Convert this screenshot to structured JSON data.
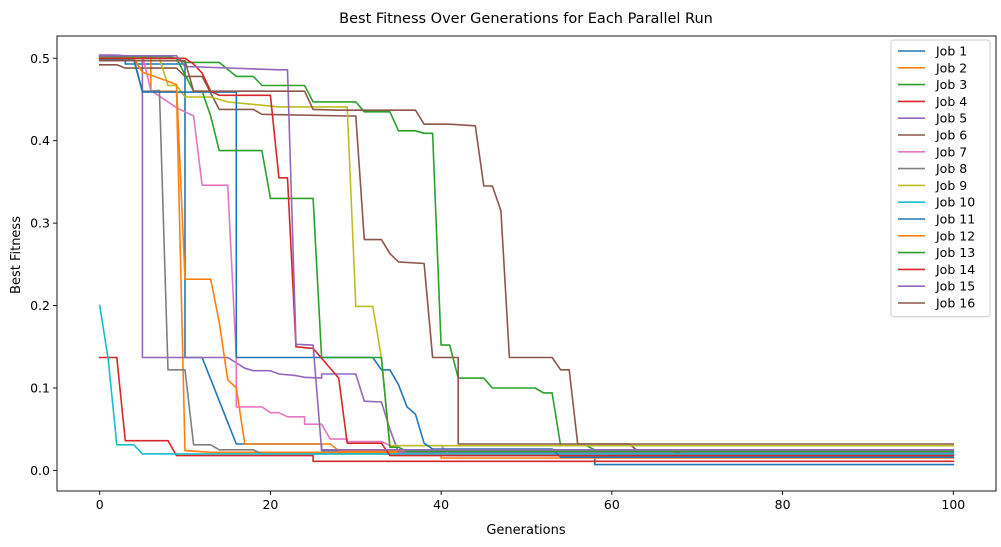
{
  "chart_data": {
    "type": "line",
    "title": "Best Fitness Over Generations for Each Parallel Run",
    "xlabel": "Generations",
    "ylabel": "Best Fitness",
    "xlim": [
      -5,
      105
    ],
    "ylim": [
      -0.025,
      0.527
    ],
    "xticks": [
      0,
      20,
      40,
      60,
      80,
      100
    ],
    "yticks": [
      0.0,
      0.1,
      0.2,
      0.3,
      0.4,
      0.5
    ],
    "xtick_labels": [
      "0",
      "20",
      "40",
      "60",
      "80",
      "100"
    ],
    "ytick_labels": [
      "0.0",
      "0.1",
      "0.2",
      "0.3",
      "0.4",
      "0.5"
    ],
    "legend_position": "top-right",
    "grid": false,
    "series": [
      {
        "name": "Job 1",
        "color": "#1f77b4",
        "points": [
          [
            0,
            0.499
          ],
          [
            3,
            0.499
          ],
          [
            3,
            0.493
          ],
          [
            10,
            0.493
          ],
          [
            10,
            0.137
          ],
          [
            12,
            0.137
          ],
          [
            16,
            0.032
          ],
          [
            26,
            0.032
          ],
          [
            26,
            0.024
          ],
          [
            58,
            0.024
          ],
          [
            58,
            0.007
          ],
          [
            100,
            0.007
          ]
        ]
      },
      {
        "name": "Job 2",
        "color": "#ff7f0e",
        "points": [
          [
            0,
            0.502
          ],
          [
            6,
            0.502
          ],
          [
            6,
            0.46
          ],
          [
            9,
            0.46
          ],
          [
            10,
            0.024
          ],
          [
            13,
            0.022
          ],
          [
            40,
            0.022
          ],
          [
            40,
            0.015
          ],
          [
            100,
            0.015
          ]
        ]
      },
      {
        "name": "Job 3",
        "color": "#2ca02c",
        "points": [
          [
            0,
            0.5
          ],
          [
            9,
            0.5
          ],
          [
            10,
            0.495
          ],
          [
            14,
            0.495
          ],
          [
            16,
            0.478
          ],
          [
            18,
            0.478
          ],
          [
            19,
            0.467
          ],
          [
            24,
            0.467
          ],
          [
            25,
            0.447
          ],
          [
            30,
            0.447
          ],
          [
            31,
            0.435
          ],
          [
            34,
            0.435
          ],
          [
            35,
            0.412
          ],
          [
            37,
            0.412
          ],
          [
            38,
            0.409
          ],
          [
            39,
            0.409
          ],
          [
            40,
            0.152
          ],
          [
            41,
            0.152
          ],
          [
            42,
            0.112
          ],
          [
            45,
            0.112
          ],
          [
            46,
            0.1
          ],
          [
            51,
            0.1
          ],
          [
            52,
            0.094
          ],
          [
            53,
            0.094
          ],
          [
            54,
            0.03
          ],
          [
            57,
            0.03
          ],
          [
            58,
            0.025
          ],
          [
            60,
            0.025
          ],
          [
            60,
            0.019
          ],
          [
            100,
            0.019
          ]
        ]
      },
      {
        "name": "Job 4",
        "color": "#d62728",
        "points": [
          [
            0,
            0.137
          ],
          [
            2,
            0.137
          ],
          [
            3,
            0.036
          ],
          [
            8,
            0.036
          ],
          [
            9,
            0.018
          ],
          [
            25,
            0.018
          ],
          [
            25,
            0.011
          ],
          [
            100,
            0.011
          ]
        ]
      },
      {
        "name": "Job 5",
        "color": "#9467bd",
        "points": [
          [
            0,
            0.504
          ],
          [
            2,
            0.504
          ],
          [
            3,
            0.503
          ],
          [
            5,
            0.503
          ],
          [
            5,
            0.137
          ],
          [
            15,
            0.137
          ],
          [
            17,
            0.124
          ],
          [
            18,
            0.121
          ],
          [
            20,
            0.121
          ],
          [
            21,
            0.117
          ],
          [
            23,
            0.115
          ],
          [
            24,
            0.113
          ],
          [
            26,
            0.112
          ],
          [
            26,
            0.117
          ],
          [
            30,
            0.117
          ],
          [
            31,
            0.084
          ],
          [
            33,
            0.083
          ],
          [
            34,
            0.05
          ],
          [
            35,
            0.022
          ],
          [
            100,
            0.022
          ]
        ]
      },
      {
        "name": "Job 6",
        "color": "#8c564b",
        "points": [
          [
            0,
            0.492
          ],
          [
            2,
            0.492
          ],
          [
            3,
            0.488
          ],
          [
            9,
            0.488
          ],
          [
            10,
            0.478
          ],
          [
            12,
            0.478
          ],
          [
            14,
            0.438
          ],
          [
            18,
            0.438
          ],
          [
            19,
            0.432
          ],
          [
            29,
            0.43
          ],
          [
            30,
            0.43
          ],
          [
            31,
            0.28
          ],
          [
            33,
            0.28
          ],
          [
            34,
            0.263
          ],
          [
            35,
            0.253
          ],
          [
            38,
            0.251
          ],
          [
            39,
            0.137
          ],
          [
            42,
            0.137
          ],
          [
            42,
            0.032
          ],
          [
            62,
            0.032
          ],
          [
            63,
            0.024
          ],
          [
            67,
            0.024
          ],
          [
            68,
            0.02
          ],
          [
            100,
            0.02
          ]
        ]
      },
      {
        "name": "Job 7",
        "color": "#e377c2",
        "points": [
          [
            0,
            0.503
          ],
          [
            5,
            0.503
          ],
          [
            6,
            0.461
          ],
          [
            9,
            0.44
          ],
          [
            11,
            0.43
          ],
          [
            12,
            0.346
          ],
          [
            15,
            0.346
          ],
          [
            16,
            0.137
          ],
          [
            16,
            0.077
          ],
          [
            19,
            0.077
          ],
          [
            20,
            0.07
          ],
          [
            21,
            0.07
          ],
          [
            22,
            0.065
          ],
          [
            24,
            0.065
          ],
          [
            24,
            0.056
          ],
          [
            26,
            0.056
          ],
          [
            27,
            0.038
          ],
          [
            29,
            0.038
          ],
          [
            29,
            0.035
          ],
          [
            33,
            0.035
          ],
          [
            34,
            0.03
          ],
          [
            40,
            0.03
          ],
          [
            41,
            0.018
          ],
          [
            100,
            0.018
          ]
        ]
      },
      {
        "name": "Job 8",
        "color": "#7f7f7f",
        "points": [
          [
            0,
            0.5
          ],
          [
            4,
            0.5
          ],
          [
            5,
            0.46
          ],
          [
            6,
            0.46
          ],
          [
            7,
            0.461
          ],
          [
            8,
            0.122
          ],
          [
            10,
            0.122
          ],
          [
            11,
            0.031
          ],
          [
            13,
            0.031
          ],
          [
            14,
            0.025
          ],
          [
            18,
            0.025
          ],
          [
            19,
            0.02
          ],
          [
            100,
            0.02
          ]
        ]
      },
      {
        "name": "Job 9",
        "color": "#bcbd22",
        "points": [
          [
            0,
            0.5
          ],
          [
            7,
            0.5
          ],
          [
            8,
            0.467
          ],
          [
            9,
            0.467
          ],
          [
            10,
            0.453
          ],
          [
            13,
            0.453
          ],
          [
            15,
            0.447
          ],
          [
            21,
            0.441
          ],
          [
            29,
            0.441
          ],
          [
            30,
            0.199
          ],
          [
            32,
            0.199
          ],
          [
            33,
            0.137
          ],
          [
            34,
            0.03
          ],
          [
            100,
            0.03
          ]
        ]
      },
      {
        "name": "Job 10",
        "color": "#17becf",
        "points": [
          [
            0,
            0.2
          ],
          [
            1,
            0.135
          ],
          [
            2,
            0.031
          ],
          [
            4,
            0.031
          ],
          [
            5,
            0.02
          ],
          [
            100,
            0.02
          ]
        ]
      },
      {
        "name": "Job 11",
        "color": "#1f77b4",
        "points": [
          [
            0,
            0.498
          ],
          [
            4,
            0.498
          ],
          [
            5,
            0.459
          ],
          [
            16,
            0.459
          ],
          [
            16,
            0.137
          ],
          [
            32,
            0.137
          ],
          [
            33,
            0.122
          ],
          [
            34,
            0.122
          ],
          [
            35,
            0.104
          ],
          [
            36,
            0.077
          ],
          [
            37,
            0.068
          ],
          [
            38,
            0.033
          ],
          [
            39,
            0.026
          ],
          [
            53,
            0.026
          ],
          [
            54,
            0.016
          ],
          [
            100,
            0.016
          ]
        ]
      },
      {
        "name": "Job 12",
        "color": "#ff7f0e",
        "points": [
          [
            0,
            0.5
          ],
          [
            4,
            0.5
          ],
          [
            5,
            0.483
          ],
          [
            8,
            0.472
          ],
          [
            9,
            0.468
          ],
          [
            10,
            0.232
          ],
          [
            13,
            0.232
          ],
          [
            14,
            0.18
          ],
          [
            15,
            0.11
          ],
          [
            16,
            0.1
          ],
          [
            17,
            0.032
          ],
          [
            27,
            0.032
          ],
          [
            28,
            0.024
          ],
          [
            100,
            0.024
          ]
        ]
      },
      {
        "name": "Job 13",
        "color": "#2ca02c",
        "points": [
          [
            0,
            0.502
          ],
          [
            8,
            0.502
          ],
          [
            9,
            0.5
          ],
          [
            11,
            0.46
          ],
          [
            12,
            0.46
          ],
          [
            13,
            0.43
          ],
          [
            14,
            0.388
          ],
          [
            19,
            0.388
          ],
          [
            20,
            0.33
          ],
          [
            25,
            0.33
          ],
          [
            26,
            0.137
          ],
          [
            33,
            0.137
          ],
          [
            34,
            0.028
          ],
          [
            35,
            0.028
          ],
          [
            36,
            0.023
          ],
          [
            100,
            0.023
          ]
        ]
      },
      {
        "name": "Job 14",
        "color": "#d62728",
        "points": [
          [
            0,
            0.5
          ],
          [
            9,
            0.5
          ],
          [
            10,
            0.5
          ],
          [
            11,
            0.493
          ],
          [
            12,
            0.482
          ],
          [
            13,
            0.46
          ],
          [
            14,
            0.455
          ],
          [
            20,
            0.455
          ],
          [
            21,
            0.355
          ],
          [
            22,
            0.355
          ],
          [
            23,
            0.15
          ],
          [
            25,
            0.148
          ],
          [
            28,
            0.112
          ],
          [
            29,
            0.033
          ],
          [
            33,
            0.033
          ],
          [
            34,
            0.018
          ],
          [
            100,
            0.018
          ]
        ]
      },
      {
        "name": "Job 15",
        "color": "#9467bd",
        "points": [
          [
            0,
            0.503
          ],
          [
            9,
            0.503
          ],
          [
            10,
            0.49
          ],
          [
            21,
            0.486
          ],
          [
            22,
            0.486
          ],
          [
            23,
            0.153
          ],
          [
            25,
            0.152
          ],
          [
            26,
            0.025
          ],
          [
            100,
            0.025
          ]
        ]
      },
      {
        "name": "Job 16",
        "color": "#8c564b",
        "points": [
          [
            0,
            0.497
          ],
          [
            10,
            0.497
          ],
          [
            11,
            0.46
          ],
          [
            24,
            0.46
          ],
          [
            25,
            0.438
          ],
          [
            28,
            0.437
          ],
          [
            32,
            0.437
          ],
          [
            33,
            0.437
          ],
          [
            37,
            0.437
          ],
          [
            38,
            0.42
          ],
          [
            41,
            0.42
          ],
          [
            44,
            0.418
          ],
          [
            45,
            0.345
          ],
          [
            46,
            0.345
          ],
          [
            47,
            0.315
          ],
          [
            48,
            0.137
          ],
          [
            53,
            0.137
          ],
          [
            54,
            0.122
          ],
          [
            55,
            0.122
          ],
          [
            56,
            0.032
          ],
          [
            100,
            0.032
          ]
        ]
      }
    ]
  }
}
